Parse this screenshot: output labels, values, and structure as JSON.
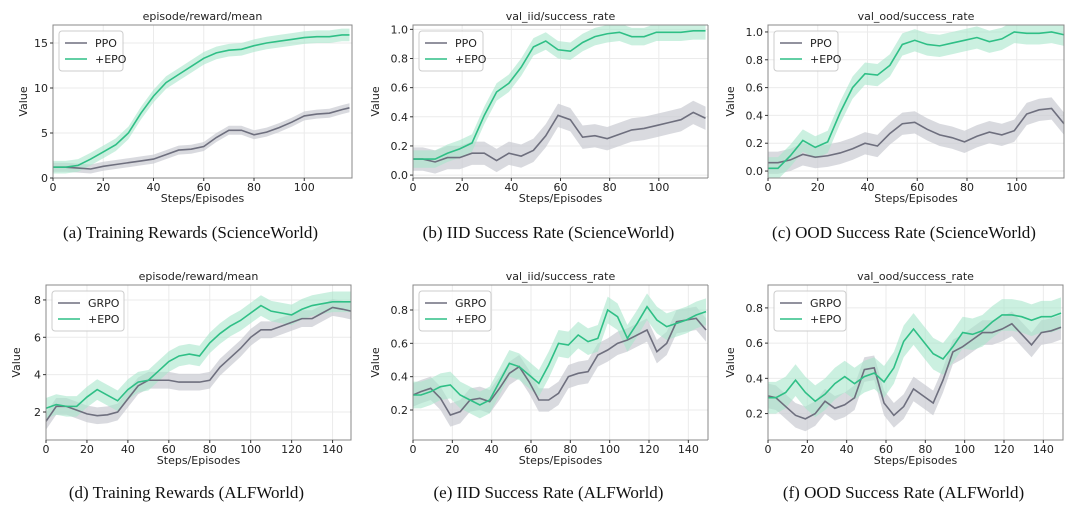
{
  "colors": {
    "baseline": "#6e6f7e",
    "epo": "#2fbf86",
    "baseline_band": "#c9cad2",
    "epo_band": "#a8e6cc",
    "grid": "#ebebeb",
    "frame": "#888888"
  },
  "chart_data": [
    {
      "type": "line",
      "title": "episode/reward/mean",
      "xlabel": "Steps/Episodes",
      "ylabel": "Value",
      "caption": "(a)  Training Rewards (ScienceWorld)",
      "xlim": [
        0,
        119
      ],
      "ylim": [
        0,
        17
      ],
      "xticks": [
        0,
        20,
        40,
        60,
        80,
        100
      ],
      "yticks": [
        0,
        5,
        10,
        15
      ],
      "grid": true,
      "legend": "top-left",
      "x": [
        0,
        5,
        10,
        15,
        20,
        25,
        30,
        35,
        40,
        45,
        50,
        55,
        60,
        65,
        70,
        75,
        80,
        85,
        90,
        95,
        100,
        105,
        110,
        115,
        118
      ],
      "series": [
        {
          "name": "PPO",
          "band_halfwidth": 0.5,
          "values": [
            1.2,
            1.2,
            1.1,
            1.0,
            1.3,
            1.5,
            1.7,
            1.9,
            2.1,
            2.6,
            3.1,
            3.2,
            3.5,
            4.5,
            5.3,
            5.3,
            4.8,
            5.1,
            5.6,
            6.2,
            6.9,
            7.1,
            7.2,
            7.6,
            7.8
          ]
        },
        {
          "name": "+EPO",
          "band_halfwidth": 0.7,
          "values": [
            1.2,
            1.2,
            1.4,
            2.1,
            2.9,
            3.7,
            5.0,
            7.2,
            9.1,
            10.6,
            11.5,
            12.4,
            13.3,
            13.9,
            14.2,
            14.3,
            14.7,
            15.0,
            15.2,
            15.4,
            15.6,
            15.7,
            15.7,
            15.9,
            15.9
          ]
        }
      ]
    },
    {
      "type": "line",
      "title": "val_iid/success_rate",
      "xlabel": "Steps/Episodes",
      "ylabel": "Value",
      "caption": "(b)  IID Success Rate (ScienceWorld)",
      "xlim": [
        0,
        120
      ],
      "ylim": [
        -0.02,
        1.03
      ],
      "xticks": [
        0,
        20,
        40,
        60,
        80,
        100
      ],
      "yticks": [
        0.0,
        0.2,
        0.4,
        0.6,
        0.8,
        1.0
      ],
      "grid": true,
      "legend": "top-left",
      "x": [
        0,
        4,
        9,
        14,
        19,
        24,
        29,
        34,
        39,
        44,
        49,
        54,
        59,
        64,
        69,
        74,
        79,
        84,
        89,
        94,
        99,
        104,
        109,
        114,
        119
      ],
      "series": [
        {
          "name": "PPO",
          "band_halfwidth": 0.08,
          "values": [
            0.11,
            0.11,
            0.09,
            0.12,
            0.12,
            0.15,
            0.15,
            0.1,
            0.15,
            0.13,
            0.17,
            0.27,
            0.41,
            0.38,
            0.26,
            0.27,
            0.25,
            0.28,
            0.31,
            0.32,
            0.34,
            0.36,
            0.38,
            0.43,
            0.39
          ]
        },
        {
          "name": "+EPO",
          "band_halfwidth": 0.06,
          "values": [
            0.11,
            0.11,
            0.11,
            0.15,
            0.18,
            0.22,
            0.41,
            0.57,
            0.63,
            0.74,
            0.88,
            0.92,
            0.86,
            0.85,
            0.91,
            0.95,
            0.97,
            0.98,
            0.95,
            0.95,
            0.98,
            0.98,
            0.98,
            0.99,
            0.99
          ]
        }
      ]
    },
    {
      "type": "line",
      "title": "val_ood/success_rate",
      "xlabel": "Steps/Episodes",
      "ylabel": "Value",
      "caption": "(c)  OOD Success Rate (ScienceWorld)",
      "xlim": [
        0,
        119
      ],
      "ylim": [
        -0.05,
        1.05
      ],
      "xticks": [
        0,
        20,
        40,
        60,
        80,
        100
      ],
      "yticks": [
        0.0,
        0.2,
        0.4,
        0.6,
        0.8,
        1.0
      ],
      "grid": true,
      "legend": "top-left",
      "x": [
        0,
        4,
        9,
        14,
        19,
        24,
        29,
        34,
        39,
        44,
        49,
        54,
        59,
        64,
        69,
        74,
        79,
        84,
        89,
        94,
        99,
        104,
        109,
        114,
        119
      ],
      "series": [
        {
          "name": "PPO",
          "band_halfwidth": 0.08,
          "values": [
            0.06,
            0.06,
            0.08,
            0.12,
            0.1,
            0.11,
            0.13,
            0.16,
            0.2,
            0.18,
            0.27,
            0.34,
            0.35,
            0.3,
            0.26,
            0.24,
            0.21,
            0.25,
            0.28,
            0.26,
            0.29,
            0.41,
            0.44,
            0.45,
            0.34
          ]
        },
        {
          "name": "+EPO",
          "band_halfwidth": 0.08,
          "values": [
            0.02,
            0.02,
            0.11,
            0.22,
            0.17,
            0.21,
            0.42,
            0.6,
            0.7,
            0.69,
            0.76,
            0.91,
            0.94,
            0.91,
            0.9,
            0.92,
            0.94,
            0.96,
            0.93,
            0.95,
            1.0,
            0.99,
            0.99,
            1.0,
            0.98
          ]
        }
      ]
    },
    {
      "type": "line",
      "title": "episode/reward/mean",
      "xlabel": "Steps/Episodes",
      "ylabel": "Value",
      "caption": "(d)  Training Rewards (ALFWorld)",
      "xlim": [
        0,
        149
      ],
      "ylim": [
        0.5,
        8.8
      ],
      "xticks": [
        0,
        20,
        40,
        60,
        80,
        100,
        120,
        140
      ],
      "yticks": [
        2,
        4,
        6,
        8
      ],
      "grid": true,
      "legend": "top-left",
      "x": [
        0,
        5,
        10,
        15,
        20,
        25,
        30,
        35,
        40,
        45,
        50,
        55,
        60,
        65,
        70,
        75,
        80,
        85,
        90,
        95,
        100,
        105,
        110,
        115,
        120,
        125,
        130,
        135,
        140,
        145,
        149
      ],
      "series": [
        {
          "name": "GRPO",
          "band_halfwidth": 0.45,
          "values": [
            1.5,
            2.3,
            2.3,
            2.1,
            1.9,
            1.8,
            1.85,
            2.0,
            2.7,
            3.4,
            3.7,
            3.7,
            3.7,
            3.6,
            3.6,
            3.6,
            3.7,
            4.4,
            4.9,
            5.4,
            6.0,
            6.4,
            6.4,
            6.6,
            6.8,
            7.0,
            7.0,
            7.3,
            7.6,
            7.5,
            7.4
          ]
        },
        {
          "name": "+EPO",
          "band_halfwidth": 0.55,
          "values": [
            2.2,
            2.4,
            2.3,
            2.3,
            2.8,
            3.2,
            2.9,
            2.6,
            3.2,
            3.6,
            3.7,
            4.2,
            4.7,
            5.0,
            5.1,
            5.0,
            5.7,
            6.2,
            6.6,
            6.9,
            7.3,
            7.7,
            7.4,
            7.3,
            7.2,
            7.5,
            7.7,
            7.8,
            7.9,
            7.9,
            7.9
          ]
        }
      ]
    },
    {
      "type": "line",
      "title": "val_iid/success_rate",
      "xlabel": "Steps/Episodes",
      "ylabel": "Value",
      "caption": "(e)  IID Success Rate (ALFWorld)",
      "xlim": [
        0,
        150
      ],
      "ylim": [
        0.02,
        0.95
      ],
      "xticks": [
        0,
        20,
        40,
        60,
        80,
        100,
        120,
        140
      ],
      "yticks": [
        0.2,
        0.4,
        0.6,
        0.8
      ],
      "grid": true,
      "legend": "top-left",
      "x": [
        0,
        4,
        9,
        14,
        19,
        24,
        29,
        34,
        39,
        44,
        49,
        54,
        59,
        64,
        69,
        74,
        79,
        84,
        89,
        94,
        99,
        104,
        109,
        114,
        119,
        124,
        129,
        134,
        139,
        144,
        149
      ],
      "series": [
        {
          "name": "GRPO",
          "band_halfwidth": 0.07,
          "values": [
            0.29,
            0.31,
            0.33,
            0.27,
            0.17,
            0.19,
            0.26,
            0.27,
            0.25,
            0.33,
            0.42,
            0.46,
            0.37,
            0.26,
            0.26,
            0.3,
            0.4,
            0.42,
            0.43,
            0.53,
            0.56,
            0.6,
            0.62,
            0.65,
            0.68,
            0.55,
            0.6,
            0.73,
            0.74,
            0.75,
            0.68
          ]
        },
        {
          "name": "+EPO",
          "band_halfwidth": 0.08,
          "values": [
            0.29,
            0.29,
            0.31,
            0.34,
            0.35,
            0.29,
            0.26,
            0.23,
            0.26,
            0.37,
            0.48,
            0.46,
            0.41,
            0.36,
            0.47,
            0.6,
            0.59,
            0.65,
            0.61,
            0.63,
            0.8,
            0.76,
            0.63,
            0.72,
            0.82,
            0.74,
            0.7,
            0.72,
            0.74,
            0.77,
            0.79
          ]
        }
      ]
    },
    {
      "type": "line",
      "title": "val_ood/success_rate",
      "xlabel": "Steps/Episodes",
      "ylabel": "Value",
      "caption": "(f)  OOD Success Rate (ALFWorld)",
      "xlim": [
        0,
        150
      ],
      "ylim": [
        0.05,
        0.93
      ],
      "xticks": [
        0,
        20,
        40,
        60,
        80,
        100,
        120,
        140
      ],
      "yticks": [
        0.2,
        0.4,
        0.6,
        0.8
      ],
      "grid": true,
      "legend": "top-left",
      "x": [
        0,
        4,
        9,
        14,
        19,
        24,
        29,
        34,
        39,
        44,
        49,
        54,
        59,
        64,
        69,
        74,
        79,
        84,
        89,
        94,
        99,
        104,
        109,
        114,
        119,
        124,
        129,
        134,
        139,
        144,
        149
      ],
      "series": [
        {
          "name": "GRPO",
          "band_halfwidth": 0.07,
          "values": [
            0.3,
            0.29,
            0.24,
            0.19,
            0.17,
            0.2,
            0.27,
            0.23,
            0.25,
            0.29,
            0.45,
            0.46,
            0.26,
            0.19,
            0.24,
            0.34,
            0.3,
            0.26,
            0.39,
            0.55,
            0.58,
            0.62,
            0.66,
            0.66,
            0.68,
            0.71,
            0.65,
            0.59,
            0.66,
            0.67,
            0.69
          ]
        },
        {
          "name": "+EPO",
          "band_halfwidth": 0.09,
          "values": [
            0.29,
            0.29,
            0.32,
            0.39,
            0.32,
            0.27,
            0.31,
            0.37,
            0.41,
            0.37,
            0.41,
            0.43,
            0.38,
            0.46,
            0.61,
            0.68,
            0.61,
            0.54,
            0.51,
            0.58,
            0.66,
            0.65,
            0.67,
            0.72,
            0.76,
            0.76,
            0.75,
            0.73,
            0.75,
            0.75,
            0.77
          ]
        }
      ]
    }
  ]
}
